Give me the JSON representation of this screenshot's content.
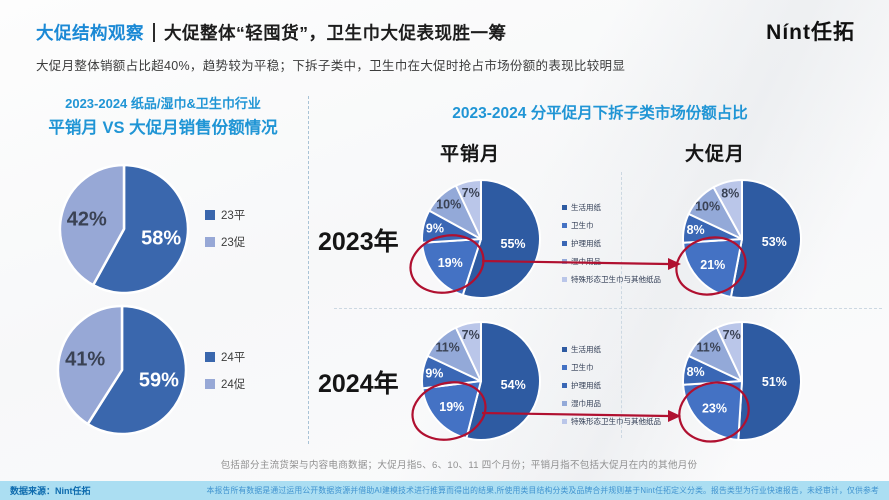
{
  "header": {
    "title_highlight": "大促结构观察",
    "title_rest": "大促整体“轻囤货”，卫生巾大促表现胜一筹",
    "subtitle": "大促月整体销额占比超40%，趋势较为平稳；下拆子类中，卫生巾在大促时抢占市场份额的表现比较明显",
    "logo": "Nínt任拓"
  },
  "left_panel": {
    "title_line1": "2023-2024 纸品/湿巾&卫生巾行业",
    "title_line2": "平销月 VS 大促月销售份额情况"
  },
  "right_panel": {
    "title": "2023-2024 分平促月下拆子类市场份额占比",
    "col_headers": [
      "平销月",
      "大促月"
    ],
    "row_headers": [
      "2023年",
      "2024年"
    ],
    "legend": [
      "生活用纸",
      "卫生巾",
      "护理用纸",
      "湿巾用品",
      "特殊形态卫生巾与其他纸品"
    ]
  },
  "footnote": "包括部分主流货架与内容电商数据；大促月指5、6、10、11 四个月份；平销月指不包括大促月在内的其他月份",
  "footer": {
    "left": "数据来源：Nint任拓",
    "right": "本报告所有数据是通过运用公开数据资源并借助AI建模技术进行推算而得出的结果,所使用类目结构分类及品牌合并规则基于Nint任拓定义分类。报告类型为行业快速报告，未经审计，仅供参考"
  },
  "colors": {
    "accent_blue": "#2095d5",
    "header_blue": "#1b89d5",
    "pie_left": [
      "#3a67ad",
      "#97a8d6"
    ],
    "pie_right": [
      "#2e5ba2",
      "#4472c4",
      "#3a67b5",
      "#93a9d8",
      "#bac6e9"
    ],
    "annotation_red": "#b01030",
    "footer_bg": "#abdef2"
  },
  "chart_data": [
    {
      "type": "pie",
      "title": "2023 平销月 vs 大促月销售份额",
      "labels": [
        "23平",
        "23促"
      ],
      "values": [
        58,
        42
      ]
    },
    {
      "type": "pie",
      "title": "2024 平销月 vs 大促月销售份额",
      "labels": [
        "24平",
        "24促"
      ],
      "values": [
        59,
        41
      ]
    },
    {
      "type": "pie",
      "title": "2023年 平销月 子类市场份额",
      "labels": [
        "生活用纸",
        "卫生巾",
        "护理用纸",
        "湿巾用品",
        "特殊形态卫生巾与其他纸品"
      ],
      "values": [
        55,
        19,
        9,
        10,
        7
      ]
    },
    {
      "type": "pie",
      "title": "2023年 大促月 子类市场份额",
      "labels": [
        "生活用纸",
        "卫生巾",
        "护理用纸",
        "湿巾用品",
        "特殊形态卫生巾与其他纸品"
      ],
      "values": [
        53,
        21,
        8,
        10,
        8
      ]
    },
    {
      "type": "pie",
      "title": "2024年 平销月 子类市场份额",
      "labels": [
        "生活用纸",
        "卫生巾",
        "护理用纸",
        "湿巾用品",
        "特殊形态卫生巾与其他纸品"
      ],
      "values": [
        54,
        19,
        9,
        11,
        7
      ]
    },
    {
      "type": "pie",
      "title": "2024年 大促月 子类市场份额",
      "labels": [
        "生活用纸",
        "卫生巾",
        "护理用纸",
        "湿巾用品",
        "特殊形态卫生巾与其他纸品"
      ],
      "values": [
        51,
        23,
        8,
        11,
        7
      ]
    }
  ]
}
